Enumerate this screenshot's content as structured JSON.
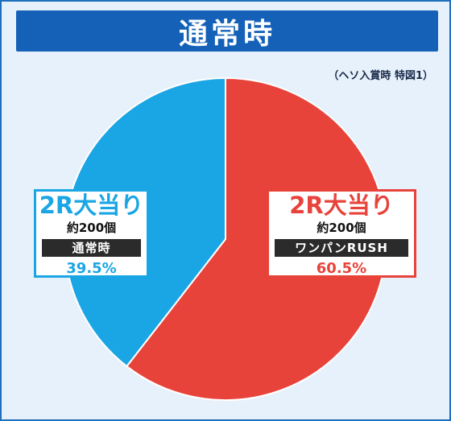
{
  "header": {
    "title": "通常時"
  },
  "note": "（ヘソ入賞時 特図1）",
  "colors": {
    "blue": "#1aa6e4",
    "red": "#e8433b",
    "header": "#1561b8",
    "frame_bg": "#e6f1fb"
  },
  "chart_data": {
    "type": "pie",
    "slices": [
      {
        "label": "2R大当り",
        "sub": "約200個",
        "mode": "ワンパンRUSH",
        "value": 60.5,
        "value_label": "60.5%",
        "color": "#e8433b"
      },
      {
        "label": "2R大当り",
        "sub": "約200個",
        "mode": "通常時",
        "value": 39.5,
        "value_label": "39.5%",
        "color": "#1aa6e4"
      }
    ]
  }
}
